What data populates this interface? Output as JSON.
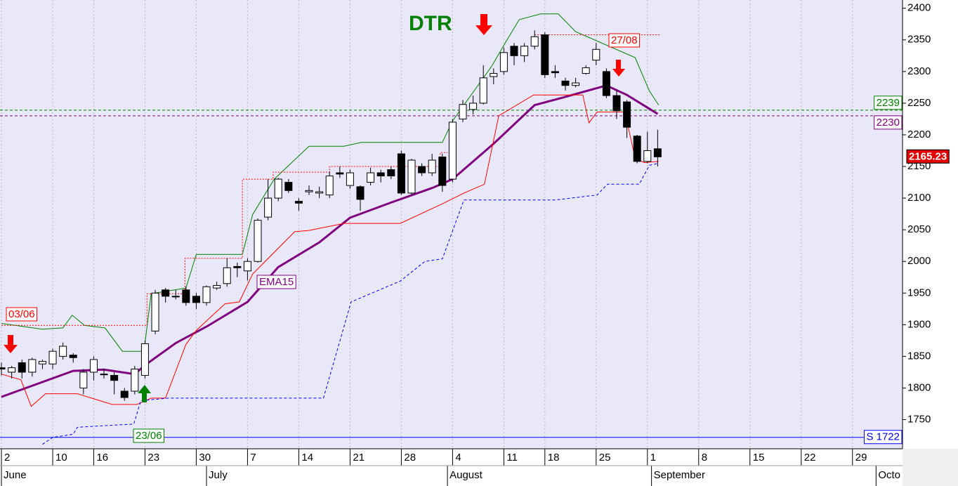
{
  "chart_data": {
    "type": "candlestick",
    "title": "DTR",
    "xlim": [
      -0.14,
      87.88
    ],
    "ylim": [
      1704,
      2413
    ],
    "yticks": [
      1750,
      1800,
      1850,
      1900,
      1950,
      2000,
      2050,
      2100,
      2150,
      2200,
      2250,
      2300,
      2350,
      2400
    ],
    "xticks": [
      {
        "value": 0,
        "label": "2"
      },
      {
        "value": 5,
        "label": "10"
      },
      {
        "value": 9,
        "label": "16"
      },
      {
        "value": 14,
        "label": "23"
      },
      {
        "value": 19,
        "label": "30"
      },
      {
        "value": 24,
        "label": "7"
      },
      {
        "value": 29,
        "label": "14"
      },
      {
        "value": 34,
        "label": "21"
      },
      {
        "value": 39,
        "label": "28"
      },
      {
        "value": 44,
        "label": "4"
      },
      {
        "value": 49,
        "label": "11"
      },
      {
        "value": 53,
        "label": "18"
      },
      {
        "value": 58,
        "label": "25"
      },
      {
        "value": 63,
        "label": "1"
      },
      {
        "value": 68,
        "label": "8"
      },
      {
        "value": 73,
        "label": "15"
      },
      {
        "value": 78,
        "label": "22"
      },
      {
        "value": 83,
        "label": "29"
      }
    ],
    "month_ticks": [
      {
        "value": 0,
        "label": "June"
      },
      {
        "value": 20,
        "label": "July"
      },
      {
        "value": 43.5,
        "label": "August"
      },
      {
        "value": 63.4,
        "label": "September"
      },
      {
        "value": 85.3,
        "label": "Octo"
      }
    ],
    "grid": true,
    "ohlc": {
      "x": [
        0,
        1,
        2,
        3,
        4,
        5,
        6,
        7,
        8,
        9,
        10,
        11,
        12,
        13,
        14,
        15,
        16,
        17,
        18,
        19,
        20,
        21,
        22,
        23,
        24,
        25,
        26,
        27,
        28,
        29,
        30,
        31,
        32,
        33,
        34,
        35,
        36,
        37,
        38,
        39,
        40,
        41,
        42,
        43,
        44,
        45,
        46,
        47,
        48,
        49,
        50,
        51,
        52,
        53,
        54,
        55,
        56,
        57,
        58,
        59,
        60,
        61,
        62,
        63,
        64
      ],
      "open": [
        1832,
        1825,
        1840,
        1825,
        1838,
        1838,
        1850,
        1852,
        1800,
        1825,
        1822,
        1820,
        1795,
        1795,
        1820,
        1890,
        1955,
        1945,
        1955,
        1945,
        1935,
        1958,
        1965,
        1992,
        1985,
        2000,
        2070,
        2100,
        2125,
        2095,
        2110,
        2108,
        2105,
        2140,
        2120,
        2118,
        2125,
        2140,
        2145,
        2170,
        2108,
        2150,
        2140,
        2165,
        2130,
        2225,
        2240,
        2250,
        2292,
        2300,
        2340,
        2325,
        2340,
        2358,
        2300,
        2285,
        2278,
        2297,
        2318,
        2300,
        2262,
        2252,
        2198,
        2158,
        2178
      ],
      "high": [
        1840,
        1835,
        1845,
        1848,
        1845,
        1862,
        1872,
        1855,
        1830,
        1850,
        1830,
        1825,
        1800,
        1835,
        1875,
        1955,
        1958,
        1955,
        1960,
        1950,
        1962,
        1968,
        2005,
        1998,
        2005,
        2068,
        2130,
        2132,
        2130,
        2100,
        2120,
        2118,
        2142,
        2150,
        2145,
        2120,
        2148,
        2145,
        2150,
        2175,
        2162,
        2155,
        2170,
        2170,
        2225,
        2255,
        2262,
        2310,
        2305,
        2338,
        2345,
        2345,
        2365,
        2362,
        2310,
        2290,
        2290,
        2310,
        2345,
        2305,
        2270,
        2255,
        2200,
        2205,
        2208
      ],
      "low": [
        1820,
        1815,
        1815,
        1818,
        1830,
        1830,
        1845,
        1840,
        1790,
        1812,
        1815,
        1790,
        1780,
        1790,
        1815,
        1885,
        1935,
        1940,
        1930,
        1925,
        1930,
        1955,
        1960,
        1975,
        1970,
        1998,
        2065,
        2095,
        2108,
        2080,
        2105,
        2100,
        2100,
        2132,
        2115,
        2080,
        2120,
        2125,
        2130,
        2105,
        2105,
        2135,
        2135,
        2110,
        2125,
        2220,
        2232,
        2248,
        2280,
        2295,
        2310,
        2315,
        2335,
        2290,
        2290,
        2270,
        2275,
        2295,
        2310,
        2258,
        2225,
        2195,
        2155,
        2155,
        2150
      ],
      "close": [
        1830,
        1832,
        1825,
        1845,
        1842,
        1858,
        1866,
        1848,
        1825,
        1845,
        1822,
        1812,
        1785,
        1830,
        1870,
        1950,
        1945,
        1945,
        1935,
        1935,
        1960,
        1962,
        1990,
        1990,
        2000,
        2065,
        2100,
        2130,
        2112,
        2092,
        2112,
        2110,
        2135,
        2138,
        2140,
        2098,
        2140,
        2135,
        2135,
        2108,
        2160,
        2140,
        2160,
        2120,
        2220,
        2248,
        2250,
        2290,
        2297,
        2330,
        2325,
        2340,
        2355,
        2295,
        2298,
        2278,
        2282,
        2306,
        2335,
        2262,
        2238,
        2212,
        2158,
        2175,
        2165.23
      ],
      "up_color": "#ffffff",
      "down_color": "#000000"
    },
    "last_price": 2165.23,
    "series": [
      {
        "name": "EMA15",
        "color": "#800080",
        "width": 3,
        "style": "solid",
        "x": [
          0,
          7,
          10,
          13,
          14,
          17,
          20,
          24,
          27,
          31,
          34,
          38,
          42,
          44,
          48,
          52,
          55,
          59,
          61,
          64
        ],
        "values": [
          1786,
          1827,
          1829,
          1822,
          1836,
          1871,
          1897,
          1936,
          1991,
          2030,
          2069,
          2093,
          2116,
          2130,
          2186,
          2247,
          2260,
          2278,
          2263,
          2233
        ]
      },
      {
        "color": "#008000",
        "width": 1,
        "style": "solid",
        "x": [
          0,
          4,
          6,
          6.9,
          8.1,
          10.1,
          11.8,
          13.9,
          14.6,
          18,
          19,
          23.5,
          24.5,
          26.6,
          30,
          33.4,
          35.1,
          43,
          44,
          47.8,
          49.2,
          50.5,
          52.6,
          54.3,
          56,
          61.8,
          63.2,
          64.1
        ],
        "values": [
          1902,
          1893,
          1895,
          1915,
          1899,
          1895,
          1858,
          1858,
          1949,
          1958,
          2011,
          2011,
          2074,
          2130,
          2182,
          2182,
          2188,
          2188,
          2222,
          2308,
          2347,
          2382,
          2391,
          2391,
          2363,
          2322,
          2269,
          2247
        ]
      },
      {
        "color": "#ff0000",
        "width": 1,
        "style": "solid",
        "x": [
          0,
          1.9,
          2.9,
          4.3,
          7.4,
          10.8,
          13.2,
          14.6,
          16,
          18,
          19,
          21.8,
          23.2,
          24.5,
          28.6,
          30,
          33.4,
          38.9,
          43,
          45.1,
          47.1,
          48.5,
          51.9,
          56.7,
          57.3,
          58.1,
          60.8,
          61.8,
          62.7,
          64.1
        ],
        "values": [
          1822,
          1813,
          1771,
          1791,
          1791,
          1774,
          1774,
          1784,
          1784,
          1869,
          1891,
          1933,
          1936,
          1980,
          2047,
          2049,
          2060,
          2060,
          2091,
          2108,
          2122,
          2230,
          2263,
          2263,
          2219,
          2236,
          2236,
          2163,
          2156,
          2158
        ]
      },
      {
        "color": "#0000ff",
        "width": 1,
        "style": "dashed",
        "x": [
          4,
          5,
          7,
          7.4,
          10.5,
          12.9,
          13.6,
          16.3,
          31.4,
          34.1,
          38.9,
          41.3,
          43,
          45.1,
          54,
          58.1,
          59.1,
          62.2,
          63.2,
          64.1
        ],
        "values": [
          1711,
          1722,
          1727,
          1738,
          1741,
          1743,
          1780,
          1784,
          1784,
          1936,
          1969,
          2000,
          2004,
          2097,
          2097,
          2105,
          2122,
          2122,
          2152,
          2155
        ]
      },
      {
        "color": "#ff0000",
        "width": 1,
        "style": "dotted",
        "x": [
          0,
          14.2,
          14.2,
          17.9,
          17.9,
          23.5,
          23.5,
          26.5,
          26.5,
          32,
          32,
          42.8,
          42.8,
          43.5,
          43.5,
          52,
          64.2
        ],
        "values": [
          1899,
          1899,
          1949,
          1949,
          2005,
          2005,
          2130,
          2130,
          2141,
          2141,
          2150,
          2150,
          2172,
          2172,
          null,
          2358,
          2358
        ]
      }
    ],
    "levels": [
      {
        "value": 2239,
        "color": "#008000",
        "style": "dashed"
      },
      {
        "value": 2230,
        "color": "#800080",
        "style": "dashed"
      },
      {
        "value": 1722,
        "label": "S 1722",
        "color": "#0000ff",
        "style": "solid"
      }
    ],
    "annotations": [
      "03/06",
      "27/08",
      "23/06"
    ]
  }
}
